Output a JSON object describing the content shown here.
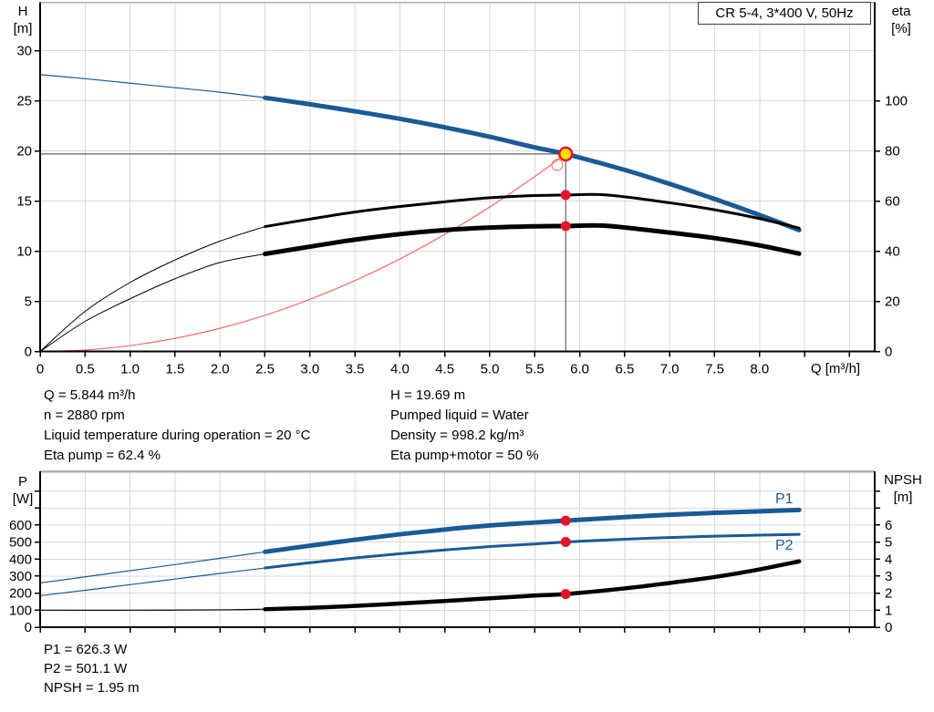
{
  "title_box": "CR 5-4, 3*400 V, 50Hz",
  "axis_titles": {
    "h_line1": "H",
    "h_line2": "[m]",
    "eta_line1": "eta",
    "eta_line2": "[%]",
    "p_line1": "P",
    "p_line2": "[W]",
    "npsh_line1": "NPSH",
    "npsh_line2": "[m]",
    "x_title": "Q [m³/h]"
  },
  "info_top_left": [
    "Q = 5.844 m³/h",
    "n = 2880 rpm",
    "Liquid temperature during operation = 20 °C",
    "Eta pump = 62.4 %"
  ],
  "info_top_right": [
    "H = 19.69 m",
    "Pumped liquid = Water",
    "Density = 998.2 kg/m³",
    "Eta pump+motor = 50 %"
  ],
  "info_bottom": [
    "P1 = 626.3 W",
    "P2 = 501.1 W",
    "NPSH = 1.95 m"
  ],
  "colors": {
    "curve_blue": "#1a5a96",
    "curve_black": "#000000",
    "system_red": "#f25c5c",
    "marker_red": "#e8112d",
    "duty_yellow": "#ffe000",
    "grid": "#d9d9d9",
    "border_gray": "#b0b0b0",
    "duty_line": "#666666",
    "axis": "#000000"
  },
  "chart_data": [
    {
      "type": "line",
      "id": "top",
      "title": "CR 5-4, 3*400 V, 50Hz",
      "x_axis": {
        "label": "Q [m³/h]",
        "range": [
          0,
          9.28
        ],
        "major_ticks": [
          {
            "v": 0,
            "l": "0"
          },
          {
            "v": 0.5,
            "l": "0.5"
          },
          {
            "v": 1,
            "l": "1.0"
          },
          {
            "v": 1.5,
            "l": "1.5"
          },
          {
            "v": 2,
            "l": "2.0"
          },
          {
            "v": 2.5,
            "l": "2.5"
          },
          {
            "v": 3,
            "l": "3.0"
          },
          {
            "v": 3.5,
            "l": "3.5"
          },
          {
            "v": 4,
            "l": "4.0"
          },
          {
            "v": 4.5,
            "l": "4.5"
          },
          {
            "v": 5,
            "l": "5.0"
          },
          {
            "v": 5.5,
            "l": "5.5"
          },
          {
            "v": 6,
            "l": "6.0"
          },
          {
            "v": 6.5,
            "l": "6.5"
          },
          {
            "v": 7,
            "l": "7.0"
          },
          {
            "v": 7.5,
            "l": "7.5"
          },
          {
            "v": 8,
            "l": "8.0"
          }
        ],
        "minor_ticks": [
          8.5,
          9.0
        ],
        "show_labels": true,
        "grid_step": 0.5
      },
      "y_left": {
        "label": "H [m]",
        "axis": "H",
        "range": [
          0,
          34.8
        ],
        "major_ticks": [
          {
            "v": 0,
            "l": "0"
          },
          {
            "v": 5,
            "l": "5"
          },
          {
            "v": 10,
            "l": "10"
          },
          {
            "v": 15,
            "l": "15"
          },
          {
            "v": 20,
            "l": "20"
          },
          {
            "v": 25,
            "l": "25"
          },
          {
            "v": 30,
            "l": "30"
          }
        ],
        "minor_ticks": [],
        "grid": true
      },
      "y_right": {
        "label": "eta [%]",
        "axis": "eta",
        "range": [
          0,
          139
        ],
        "major_ticks": [
          {
            "v": 0,
            "l": "0"
          },
          {
            "v": 20,
            "l": "20"
          },
          {
            "v": 40,
            "l": "40"
          },
          {
            "v": 60,
            "l": "60"
          },
          {
            "v": 80,
            "l": "80"
          },
          {
            "v": 100,
            "l": "100"
          }
        ],
        "minor_ticks": [],
        "grid": false
      },
      "series": [
        {
          "name": "system-curve",
          "axis": "H",
          "color": "#f25c5c",
          "width_thin": 1.1,
          "width_bold": 1.1,
          "bold_from": 99,
          "points": [
            [
              0,
              0
            ],
            [
              0.5,
              0.14
            ],
            [
              1,
              0.58
            ],
            [
              1.5,
              1.3
            ],
            [
              2,
              2.31
            ],
            [
              2.5,
              3.6
            ],
            [
              3,
              5.19
            ],
            [
              3.5,
              7.06
            ],
            [
              4,
              9.22
            ],
            [
              4.5,
              11.67
            ],
            [
              5,
              14.41
            ],
            [
              5.5,
              17.44
            ],
            [
              5.844,
              19.69
            ]
          ]
        },
        {
          "name": "pump-head-curve",
          "axis": "H",
          "color": "#1a5a96",
          "width_thin": 1.2,
          "width_bold": 5,
          "bold_from": 2.5,
          "label": "",
          "points": [
            [
              0,
              27.6
            ],
            [
              0.5,
              27.2
            ],
            [
              1,
              26.75
            ],
            [
              1.5,
              26.3
            ],
            [
              2,
              25.85
            ],
            [
              2.5,
              25.3
            ],
            [
              3,
              24.65
            ],
            [
              3.5,
              23.95
            ],
            [
              4,
              23.2
            ],
            [
              4.5,
              22.35
            ],
            [
              5,
              21.4
            ],
            [
              5.5,
              20.35
            ],
            [
              5.844,
              19.69
            ],
            [
              6.5,
              18.1
            ],
            [
              7,
              16.7
            ],
            [
              7.5,
              15.2
            ],
            [
              8,
              13.6
            ],
            [
              8.44,
              12.1
            ]
          ]
        },
        {
          "name": "eta-pump-curve",
          "axis": "eta",
          "color": "#000000",
          "width_thin": 1,
          "width_bold": 3,
          "bold_from": 2.5,
          "label": "",
          "points": [
            [
              0,
              0
            ],
            [
              0.5,
              16
            ],
            [
              1,
              27.5
            ],
            [
              1.5,
              36.5
            ],
            [
              2,
              44
            ],
            [
              2.5,
              49.8
            ],
            [
              3,
              52.8
            ],
            [
              3.5,
              55.6
            ],
            [
              4,
              57.8
            ],
            [
              4.5,
              59.7
            ],
            [
              5,
              61.3
            ],
            [
              5.5,
              62.2
            ],
            [
              5.844,
              62.4
            ],
            [
              6.3,
              62.4
            ],
            [
              7,
              59.3
            ],
            [
              7.5,
              56.5
            ],
            [
              8,
              53
            ],
            [
              8.44,
              49.2
            ]
          ]
        },
        {
          "name": "eta-pump-motor-curve",
          "axis": "eta",
          "color": "#000000",
          "width_thin": 1,
          "width_bold": 5,
          "bold_from": 2.5,
          "label": "",
          "points": [
            [
              0,
              0
            ],
            [
              0.5,
              12
            ],
            [
              1,
              21
            ],
            [
              1.5,
              29
            ],
            [
              2,
              35.5
            ],
            [
              2.5,
              38.9
            ],
            [
              3,
              41.8
            ],
            [
              3.5,
              44.6
            ],
            [
              4,
              46.8
            ],
            [
              4.5,
              48.4
            ],
            [
              5,
              49.4
            ],
            [
              5.5,
              49.9
            ],
            [
              5.844,
              50
            ],
            [
              6.3,
              50.1
            ],
            [
              7,
              47.4
            ],
            [
              7.5,
              45.2
            ],
            [
              8,
              42.3
            ],
            [
              8.44,
              39
            ]
          ]
        }
      ],
      "duty_point": {
        "q": 5.844,
        "h": 19.69,
        "eta_pump": 62.4,
        "eta_pump_motor": 50
      },
      "markers": [
        {
          "type": "dot",
          "axis": "eta",
          "q": 5.844,
          "v": 62.4
        },
        {
          "type": "dot",
          "axis": "eta",
          "q": 5.844,
          "v": 50
        },
        {
          "type": "open",
          "axis": "H",
          "q": 5.75,
          "v": 18.6
        },
        {
          "type": "duty",
          "axis": "H",
          "q": 5.844,
          "v": 19.69
        }
      ]
    },
    {
      "type": "line",
      "id": "bottom",
      "title": "Power and NPSH",
      "x_axis": {
        "label": "",
        "range": [
          0,
          9.28
        ],
        "major_ticks": [
          {
            "v": 0,
            "l": ""
          },
          {
            "v": 0.5,
            "l": ""
          },
          {
            "v": 1,
            "l": ""
          },
          {
            "v": 1.5,
            "l": ""
          },
          {
            "v": 2,
            "l": ""
          },
          {
            "v": 2.5,
            "l": ""
          },
          {
            "v": 3,
            "l": ""
          },
          {
            "v": 3.5,
            "l": ""
          },
          {
            "v": 4,
            "l": ""
          },
          {
            "v": 4.5,
            "l": ""
          },
          {
            "v": 5,
            "l": ""
          },
          {
            "v": 5.5,
            "l": ""
          },
          {
            "v": 6,
            "l": ""
          },
          {
            "v": 6.5,
            "l": ""
          },
          {
            "v": 7,
            "l": ""
          },
          {
            "v": 7.5,
            "l": ""
          },
          {
            "v": 8,
            "l": ""
          }
        ],
        "minor_ticks": [
          8.5,
          9.0
        ],
        "show_labels": false,
        "grid_step": 0.5
      },
      "y_left": {
        "label": "P [W]",
        "axis": "P",
        "range": [
          0,
          916
        ],
        "major_ticks": [
          {
            "v": 0,
            "l": "0"
          },
          {
            "v": 100,
            "l": "100"
          },
          {
            "v": 200,
            "l": "200"
          },
          {
            "v": 300,
            "l": "300"
          },
          {
            "v": 400,
            "l": "400"
          },
          {
            "v": 500,
            "l": "500"
          },
          {
            "v": 600,
            "l": "600"
          }
        ],
        "minor_ticks": [
          700,
          800
        ],
        "grid": true
      },
      "y_right": {
        "label": "NPSH [m]",
        "axis": "NPSH",
        "range": [
          0,
          9.16
        ],
        "major_ticks": [
          {
            "v": 0,
            "l": "0"
          },
          {
            "v": 1,
            "l": "1"
          },
          {
            "v": 2,
            "l": "2"
          },
          {
            "v": 3,
            "l": "3"
          },
          {
            "v": 4,
            "l": "4"
          },
          {
            "v": 5,
            "l": "5"
          },
          {
            "v": 6,
            "l": "6"
          }
        ],
        "minor_ticks": [
          7,
          8
        ],
        "grid": false
      },
      "series": [
        {
          "name": "p1-curve",
          "axis": "P",
          "color": "#1a5a96",
          "label": "P1",
          "width_thin": 1.2,
          "width_bold": 5,
          "bold_from": 2.5,
          "points": [
            [
              0,
              260
            ],
            [
              0.5,
              296
            ],
            [
              1,
              332
            ],
            [
              1.5,
              368
            ],
            [
              2,
              405
            ],
            [
              2.5,
              443
            ],
            [
              3,
              479
            ],
            [
              3.5,
              514
            ],
            [
              4,
              546
            ],
            [
              4.5,
              574
            ],
            [
              5,
              598
            ],
            [
              5.5,
              615
            ],
            [
              5.844,
              626.3
            ],
            [
              6.5,
              647
            ],
            [
              7,
              661
            ],
            [
              7.5,
              672
            ],
            [
              8,
              681
            ],
            [
              8.44,
              689
            ]
          ]
        },
        {
          "name": "p2-curve",
          "axis": "P",
          "color": "#1a5a96",
          "label": "P2",
          "width_thin": 1.2,
          "width_bold": 3,
          "bold_from": 2.5,
          "points": [
            [
              0,
              185
            ],
            [
              0.5,
              217
            ],
            [
              1,
              250
            ],
            [
              1.5,
              283
            ],
            [
              2,
              316
            ],
            [
              2.5,
              348
            ],
            [
              3,
              379
            ],
            [
              3.5,
              407
            ],
            [
              4,
              432
            ],
            [
              4.5,
              454
            ],
            [
              5,
              474
            ],
            [
              5.5,
              489
            ],
            [
              5.844,
              501.1
            ],
            [
              6.5,
              517
            ],
            [
              7,
              527
            ],
            [
              7.5,
              535
            ],
            [
              8,
              541
            ],
            [
              8.44,
              546
            ]
          ]
        },
        {
          "name": "npsh-curve",
          "axis": "NPSH",
          "color": "#000000",
          "label": "",
          "width_thin": 1.2,
          "width_bold": 4.5,
          "bold_from": 2.5,
          "points": [
            [
              0,
              1.0
            ],
            [
              1,
              1.0
            ],
            [
              2,
              1.02
            ],
            [
              2.5,
              1.06
            ],
            [
              3,
              1.14
            ],
            [
              3.5,
              1.25
            ],
            [
              4,
              1.39
            ],
            [
              4.5,
              1.54
            ],
            [
              5,
              1.7
            ],
            [
              5.5,
              1.86
            ],
            [
              5.844,
              1.95
            ],
            [
              6.5,
              2.28
            ],
            [
              7,
              2.6
            ],
            [
              7.5,
              2.95
            ],
            [
              8,
              3.4
            ],
            [
              8.44,
              3.87
            ]
          ]
        }
      ],
      "duty_values": {
        "p1": 626.3,
        "p2": 501.1,
        "npsh": 1.95
      },
      "markers": [
        {
          "type": "dot",
          "axis": "P",
          "q": 5.844,
          "v": 626.3
        },
        {
          "type": "dot",
          "axis": "P",
          "q": 5.844,
          "v": 501.1
        },
        {
          "type": "dot",
          "axis": "NPSH",
          "q": 5.844,
          "v": 1.95
        }
      ]
    }
  ]
}
